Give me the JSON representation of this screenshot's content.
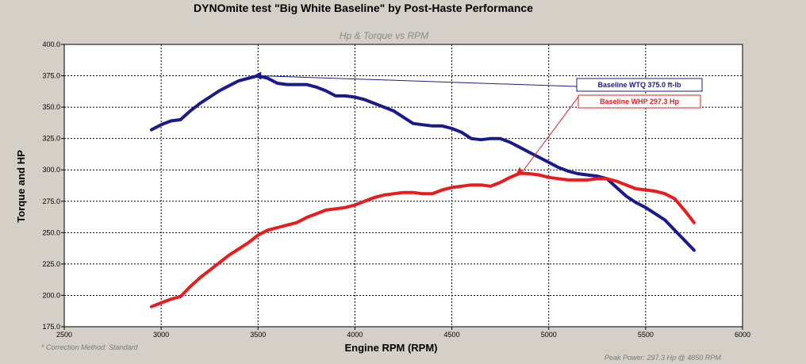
{
  "chart_data": {
    "type": "line",
    "title": "DYNOmite test \"Big White Baseline\" by Post-Haste Performance",
    "subtitle": "Hp & Torque vs RPM",
    "xlabel": "Engine RPM (RPM)",
    "ylabel": "Torque and HP",
    "xlim": [
      2500,
      6000
    ],
    "ylim": [
      175,
      400
    ],
    "x_ticks": [
      "2500",
      "3000",
      "3500",
      "4000",
      "4500",
      "5000",
      "5500",
      "6000"
    ],
    "y_ticks": [
      "175.0",
      "200.0",
      "225.0",
      "250.0",
      "275.0",
      "300.0",
      "325.0",
      "350.0",
      "375.0",
      "400.0"
    ],
    "grid": true,
    "series": [
      {
        "name": "Baseline WTQ 375.0 ft-lb",
        "color": "#1a1a8c",
        "x": [
          2950,
          3000,
          3050,
          3100,
          3150,
          3200,
          3250,
          3300,
          3350,
          3400,
          3450,
          3500,
          3550,
          3600,
          3650,
          3700,
          3750,
          3800,
          3850,
          3900,
          3950,
          4000,
          4050,
          4100,
          4150,
          4200,
          4250,
          4300,
          4350,
          4400,
          4450,
          4500,
          4550,
          4600,
          4650,
          4700,
          4750,
          4800,
          4850,
          4900,
          4950,
          5000,
          5050,
          5100,
          5150,
          5200,
          5250,
          5300,
          5350,
          5400,
          5450,
          5500,
          5550,
          5600,
          5650,
          5700,
          5750
        ],
        "y": [
          332,
          336,
          339,
          340,
          347,
          353,
          358,
          363,
          367,
          371,
          373,
          375,
          373,
          369,
          368,
          368,
          368,
          366,
          363,
          359,
          359,
          358,
          356,
          353,
          350,
          347,
          342,
          337,
          336,
          335,
          335,
          333,
          330,
          325,
          324,
          325,
          325,
          322,
          318,
          314,
          310,
          306,
          302,
          299,
          297,
          296,
          295,
          293,
          286,
          279,
          274,
          270,
          265,
          260,
          252,
          244,
          236
        ]
      },
      {
        "name": "Baseline WHP 297.3 Hp",
        "color": "#e81c1c",
        "x": [
          2950,
          3000,
          3050,
          3100,
          3150,
          3200,
          3250,
          3300,
          3350,
          3400,
          3450,
          3500,
          3550,
          3600,
          3650,
          3700,
          3750,
          3800,
          3850,
          3900,
          3950,
          4000,
          4050,
          4100,
          4150,
          4200,
          4250,
          4300,
          4350,
          4400,
          4450,
          4500,
          4550,
          4600,
          4650,
          4700,
          4750,
          4800,
          4850,
          4900,
          4950,
          5000,
          5050,
          5100,
          5150,
          5200,
          5250,
          5300,
          5350,
          5400,
          5450,
          5500,
          5550,
          5600,
          5650,
          5700,
          5750
        ],
        "y": [
          191,
          194,
          197,
          199,
          207,
          214,
          220,
          226,
          232,
          237,
          242,
          248,
          252,
          254,
          256,
          258,
          262,
          265,
          268,
          269,
          270,
          272,
          275,
          278,
          280,
          281,
          282,
          282,
          281,
          281,
          284,
          286,
          287,
          288,
          288,
          287,
          290,
          294,
          297.3,
          297,
          296,
          294,
          293,
          292,
          292,
          292,
          293,
          293,
          291,
          288,
          285,
          284,
          283,
          281,
          277,
          268,
          258
        ]
      }
    ],
    "markers": [
      {
        "series": "Baseline WTQ 375.0 ft-lb",
        "x": 3500,
        "y": 375,
        "label": "Baseline WTQ 375.0 ft-lb"
      },
      {
        "series": "Baseline WHP 297.3 Hp",
        "x": 4850,
        "y": 297.3,
        "label": "Baseline WHP 297.3 Hp"
      }
    ],
    "notes": {
      "correction": "* Correction Method: Standard",
      "peak": "Peak Power: 297.3 Hp @ 4850 RPM"
    },
    "legend_placement": "top-right"
  }
}
